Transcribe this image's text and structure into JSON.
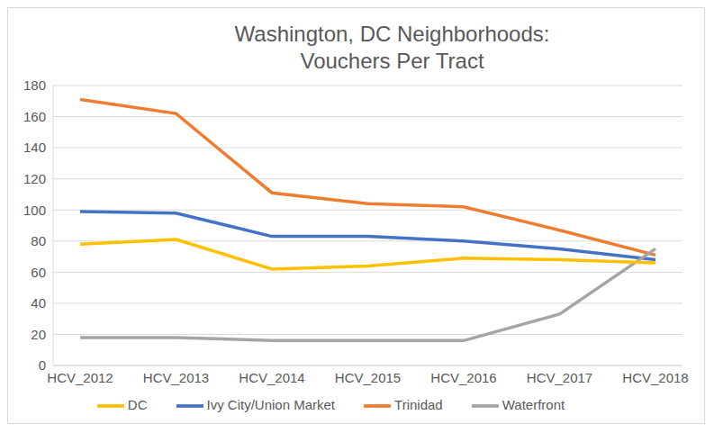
{
  "chart_data": {
    "type": "line",
    "title": "Washington, DC Neighborhoods: Vouchers Per Tract",
    "categories": [
      "HCV_2012",
      "HCV_2013",
      "HCV_2014",
      "HCV_2015",
      "HCV_2016",
      "HCV_2017",
      "HCV_2018"
    ],
    "series": [
      {
        "name": "Ivy City/Union Market",
        "color": "#4472c4",
        "values": [
          99,
          98,
          83,
          83,
          80,
          75,
          68
        ]
      },
      {
        "name": "Trinidad",
        "color": "#ed7d31",
        "values": [
          171,
          162,
          111,
          104,
          102,
          87,
          71
        ]
      },
      {
        "name": "Waterfront",
        "color": "#a5a5a5",
        "values": [
          18,
          18,
          16,
          16,
          16,
          33,
          75
        ]
      },
      {
        "name": "DC",
        "color": "#ffc000",
        "values": [
          78,
          81,
          62,
          64,
          69,
          68,
          66
        ]
      }
    ],
    "ylim": [
      0,
      180
    ],
    "yticks": [
      0,
      20,
      40,
      60,
      80,
      100,
      120,
      140,
      160,
      180
    ],
    "grid": true,
    "legend": "bottom",
    "marker": "none",
    "line_style": "solid"
  }
}
